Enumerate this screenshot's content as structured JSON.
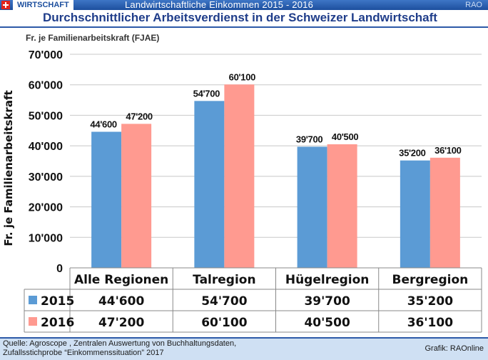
{
  "header": {
    "section_label": "WIRTSCHAFT",
    "banner_title": "Landwirtschaftliche Einkommen 2015 - 2016",
    "brand": "RAO"
  },
  "title": "Durchschnittlicher Arbeitsverdienst in der Schweizer Landwirtschaft",
  "unit_label": "Fr. je Familienarbeitskraft (FJAE)",
  "chart_data": {
    "type": "bar",
    "title": "Durchschnittlicher Arbeitsverdienst in der Schweizer Landwirtschaft",
    "subtitle": "Fr. je Familienarbeitskraft (FJAE)",
    "xlabel": "",
    "ylabel": "Fr. je Familienarbeitskraft",
    "ylim": [
      0,
      70000
    ],
    "yticks": [
      0,
      10000,
      20000,
      30000,
      40000,
      50000,
      60000,
      70000
    ],
    "ytick_labels": [
      "0",
      "10'000",
      "20'000",
      "30'000",
      "40'000",
      "50'000",
      "60'000",
      "70'000"
    ],
    "grid": true,
    "categories": [
      "Alle Regionen",
      "Talregion",
      "Hügelregion",
      "Bergregion"
    ],
    "series": [
      {
        "name": "2015",
        "color": "#5b9bd5",
        "values": [
          44600,
          54700,
          39700,
          35200
        ],
        "labels": [
          "44'600",
          "54'700",
          "39'700",
          "35'200"
        ]
      },
      {
        "name": "2016",
        "color": "#ff9a90",
        "values": [
          47200,
          60100,
          40500,
          36100
        ],
        "labels": [
          "47'200",
          "60'100",
          "40'500",
          "36'100"
        ]
      }
    ],
    "legend": "data-table-below"
  },
  "footer": {
    "source_line1": "Quelle: Agroscope , Zentralen Auswertung von Buchhaltungsdaten,",
    "source_line2": "Zufallsstichprobe “Einkommenssituation” 2017",
    "credit": "Grafik: RAOnline"
  }
}
